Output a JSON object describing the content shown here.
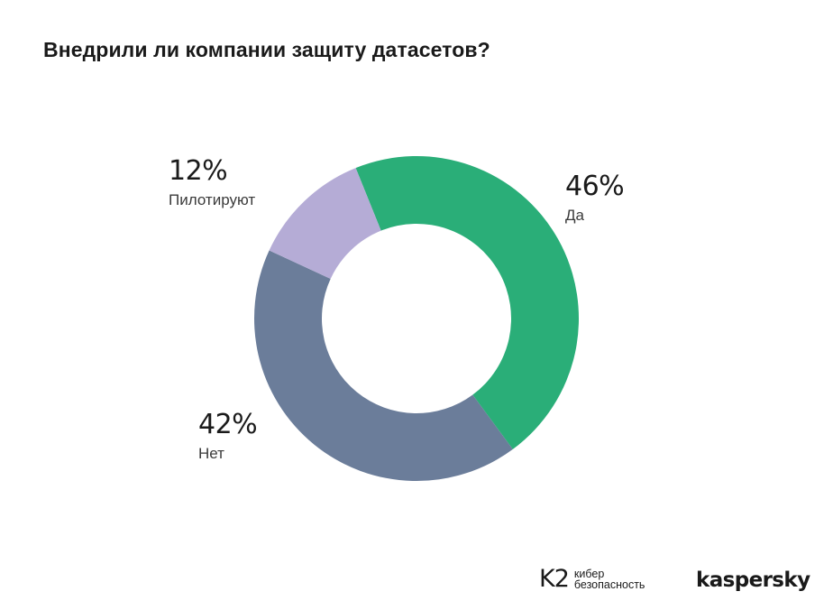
{
  "chart_data": {
    "type": "pie",
    "title": "Внедрили ли компании защиту датасетов?",
    "slices": [
      {
        "label": "Да",
        "value": 46,
        "value_label": "46%",
        "color": "#2aae78"
      },
      {
        "label": "Нет",
        "value": 42,
        "value_label": "42%",
        "color": "#6b7d9a"
      },
      {
        "label": "Пилотируют",
        "value": 12,
        "value_label": "12%",
        "color": "#b5acd6"
      }
    ],
    "donut": true
  },
  "branding": {
    "k2_mark": "K2",
    "k2_line1": "кибер",
    "k2_line2": "безопасность",
    "kaspersky": "kaspersky"
  }
}
